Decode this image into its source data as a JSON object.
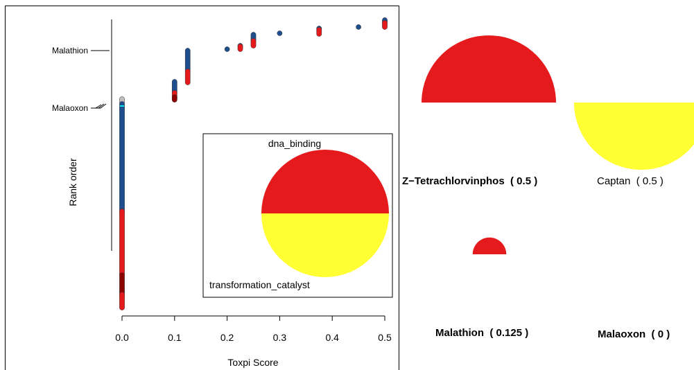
{
  "colors": {
    "dna_binding": "#e41a1c",
    "transformation_catalyst": "#ffff33",
    "dot_blue": "#1f4e8c",
    "dot_red": "#e41a1c",
    "dot_darkred": "#8b0000",
    "dot_cyan": "#00e5ee",
    "dot_grey": "#bdbdbd"
  },
  "chart_data": [
    {
      "type": "scatter",
      "xlabel": "Toxpi Score",
      "ylabel": "Rank order",
      "xlim": [
        0,
        0.5
      ],
      "x_ticks": [
        "0.0",
        "0.1",
        "0.2",
        "0.3",
        "0.4",
        "0.5"
      ],
      "annotations": [
        "Malathion",
        "Malaoxon"
      ],
      "column_groups": [
        {
          "x": 0.0,
          "colors": [
            "grey",
            "blue",
            "red",
            "darkred",
            "red"
          ]
        },
        {
          "x": 0.1,
          "colors": [
            "blue",
            "red",
            "darkred"
          ]
        },
        {
          "x": 0.125,
          "colors": [
            "blue",
            "red"
          ]
        },
        {
          "x": 0.2,
          "colors": [
            "blue"
          ]
        },
        {
          "x": 0.225,
          "colors": [
            "blue",
            "red"
          ]
        },
        {
          "x": 0.25,
          "colors": [
            "blue",
            "red"
          ]
        },
        {
          "x": 0.3,
          "colors": [
            "blue"
          ]
        },
        {
          "x": 0.375,
          "colors": [
            "blue",
            "red"
          ]
        },
        {
          "x": 0.45,
          "colors": [
            "blue"
          ]
        },
        {
          "x": 0.5,
          "colors": [
            "blue",
            "red"
          ]
        }
      ]
    },
    {
      "type": "pie",
      "role": "legend",
      "labels": [
        "dna_binding",
        "transformation_catalyst"
      ],
      "values": [
        1,
        1
      ]
    },
    {
      "type": "pie",
      "role": "chemical_profiles",
      "chemicals": [
        {
          "name": "Z−Tetrachlorvinphos",
          "score_label": "( 0.5 )",
          "dna_binding": 1.0,
          "transformation_catalyst": 0.0,
          "bold": true
        },
        {
          "name": "Captan",
          "score_label": "( 0.5 )",
          "dna_binding": 0.0,
          "transformation_catalyst": 1.0,
          "bold": false
        },
        {
          "name": "Malathion",
          "score_label": "( 0.125 )",
          "dna_binding": 0.25,
          "transformation_catalyst": 0.0,
          "bold": true
        },
        {
          "name": "Malaoxon",
          "score_label": "( 0 )",
          "dna_binding": 0.0,
          "transformation_catalyst": 0.0,
          "bold": true
        }
      ]
    }
  ]
}
